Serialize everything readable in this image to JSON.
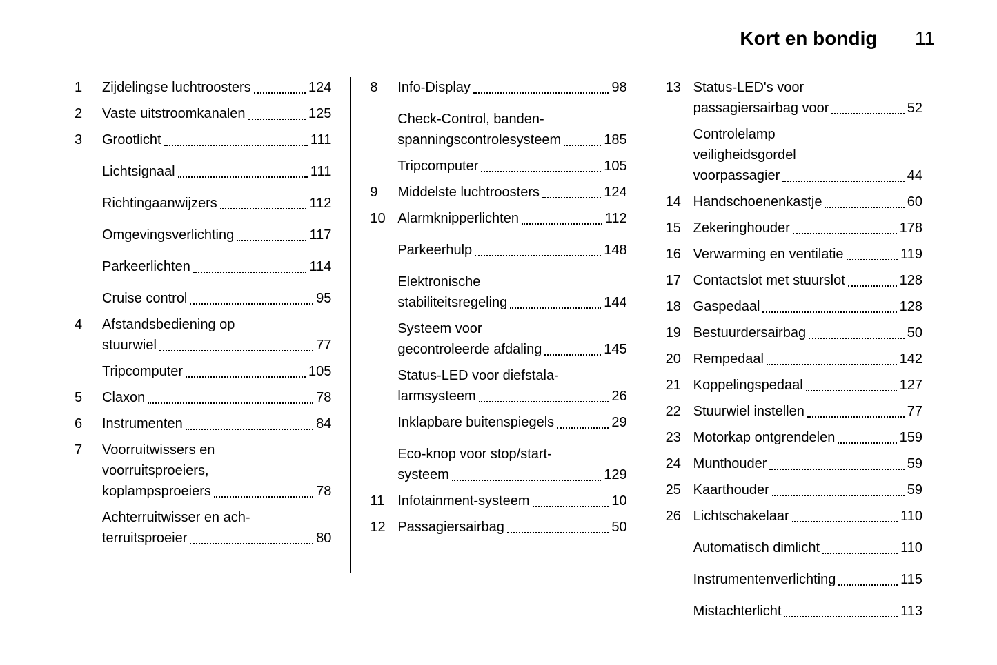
{
  "header": {
    "title": "Kort en bondig",
    "page_number": "11"
  },
  "styling": {
    "font_family": "Arial, Helvetica, sans-serif",
    "font_size_body": 20,
    "font_size_header": 28,
    "background_color": "#ffffff",
    "text_color": "#000000",
    "divider_color": "#000000",
    "column_count": 3
  },
  "columns": [
    {
      "entries": [
        {
          "num": "1",
          "rows": [
            {
              "label": "Zijdelingse luchtroosters",
              "page": "124"
            }
          ]
        },
        {
          "num": "2",
          "rows": [
            {
              "label": "Vaste uitstroomkanalen",
              "page": "125"
            }
          ]
        },
        {
          "num": "3",
          "rows": [
            {
              "label": "Grootlicht",
              "page": "111"
            },
            {
              "label": "Lichtsignaal",
              "page": "111",
              "gap": true
            },
            {
              "label": "Richtingaanwijzers",
              "page": "112",
              "gap": true
            },
            {
              "label": "Omgevingsverlichting",
              "page": "117",
              "gap": true
            },
            {
              "label": "Parkeerlichten",
              "page": "114",
              "gap": true
            },
            {
              "label": "Cruise control",
              "page": "95",
              "gap": true
            }
          ]
        },
        {
          "num": "4",
          "rows": [
            {
              "label_lines": [
                "Afstandsbediening op",
                "stuurwiel"
              ],
              "page": "77"
            },
            {
              "label": "Tripcomputer",
              "page": "105",
              "gap": true
            }
          ]
        },
        {
          "num": "5",
          "rows": [
            {
              "label": "Claxon",
              "page": "78"
            }
          ]
        },
        {
          "num": "6",
          "rows": [
            {
              "label": "Instrumenten",
              "page": "84"
            }
          ]
        },
        {
          "num": "7",
          "rows": [
            {
              "label_lines": [
                "Voorruitwissers en",
                "voorruitsproeiers,",
                "koplampsproeiers"
              ],
              "page": "78"
            },
            {
              "label_lines": [
                "Achterruitwisser en ach-",
                "terruitsproeier"
              ],
              "page": "80",
              "gap": true
            }
          ]
        }
      ]
    },
    {
      "entries": [
        {
          "num": "8",
          "rows": [
            {
              "label": "Info-Display",
              "page": "98"
            },
            {
              "label_lines": [
                "Check-Control, banden-",
                "spanningscontrolesysteem"
              ],
              "page": "185",
              "gap": true
            },
            {
              "label": "Tripcomputer",
              "page": "105",
              "gap": true
            }
          ]
        },
        {
          "num": "9",
          "rows": [
            {
              "label": "Middelste luchtroosters",
              "page": "124"
            }
          ]
        },
        {
          "num": "10",
          "rows": [
            {
              "label": "Alarmknipperlichten",
              "page": "112"
            },
            {
              "label": "Parkeerhulp",
              "page": "148",
              "gap": true
            },
            {
              "label_lines": [
                "Elektronische",
                "stabiliteitsregeling"
              ],
              "page": "144",
              "gap": true
            },
            {
              "label_lines": [
                "Systeem voor",
                "gecontroleerde afdaling"
              ],
              "page": "145",
              "gap": true
            },
            {
              "label_lines": [
                "Status-LED voor diefstala-",
                "larmsysteem"
              ],
              "page": "26",
              "gap": true
            },
            {
              "label": "Inklapbare buitenspiegels",
              "page": "29",
              "gap": true
            },
            {
              "label_lines": [
                "Eco-knop voor stop/start-",
                "systeem"
              ],
              "page": "129",
              "gap": true
            }
          ]
        },
        {
          "num": "11",
          "rows": [
            {
              "label": "Infotainment-systeem",
              "page": "10"
            }
          ]
        },
        {
          "num": "12",
          "rows": [
            {
              "label": "Passagiersairbag",
              "page": "50"
            }
          ]
        }
      ]
    },
    {
      "entries": [
        {
          "num": "13",
          "rows": [
            {
              "label_lines": [
                "Status-LED's voor",
                "passagiersairbag voor"
              ],
              "page": "52"
            },
            {
              "label_lines": [
                "Controlelamp",
                "veiligheidsgordel",
                "voorpassagier"
              ],
              "page": "44",
              "gap": true
            }
          ]
        },
        {
          "num": "14",
          "rows": [
            {
              "label": "Handschoenenkastje",
              "page": "60"
            }
          ]
        },
        {
          "num": "15",
          "rows": [
            {
              "label": "Zekeringhouder",
              "page": "178"
            }
          ]
        },
        {
          "num": "16",
          "rows": [
            {
              "label": "Verwarming en ventilatie",
              "page": "119"
            }
          ]
        },
        {
          "num": "17",
          "rows": [
            {
              "label": "Contactslot met stuurslot",
              "page": "128"
            }
          ]
        },
        {
          "num": "18",
          "rows": [
            {
              "label": "Gaspedaal",
              "page": "128"
            }
          ]
        },
        {
          "num": "19",
          "rows": [
            {
              "label": "Bestuurdersairbag",
              "page": "50"
            }
          ]
        },
        {
          "num": "20",
          "rows": [
            {
              "label": "Rempedaal",
              "page": "142"
            }
          ]
        },
        {
          "num": "21",
          "rows": [
            {
              "label": "Koppelingspedaal",
              "page": "127"
            }
          ]
        },
        {
          "num": "22",
          "rows": [
            {
              "label": "Stuurwiel instellen",
              "page": "77"
            }
          ]
        },
        {
          "num": "23",
          "rows": [
            {
              "label": "Motorkap ontgrendelen",
              "page": "159"
            }
          ]
        },
        {
          "num": "24",
          "rows": [
            {
              "label": "Munthouder",
              "page": "59"
            }
          ]
        },
        {
          "num": "25",
          "rows": [
            {
              "label": "Kaarthouder",
              "page": "59"
            }
          ]
        },
        {
          "num": "26",
          "rows": [
            {
              "label": "Lichtschakelaar",
              "page": "110"
            },
            {
              "label": "Automatisch dimlicht",
              "page": "110",
              "gap": true
            },
            {
              "label": "Instrumentenverlichting",
              "page": "115",
              "gap": true
            },
            {
              "label": "Mistachterlicht",
              "page": "113",
              "gap": true
            }
          ]
        }
      ]
    }
  ]
}
